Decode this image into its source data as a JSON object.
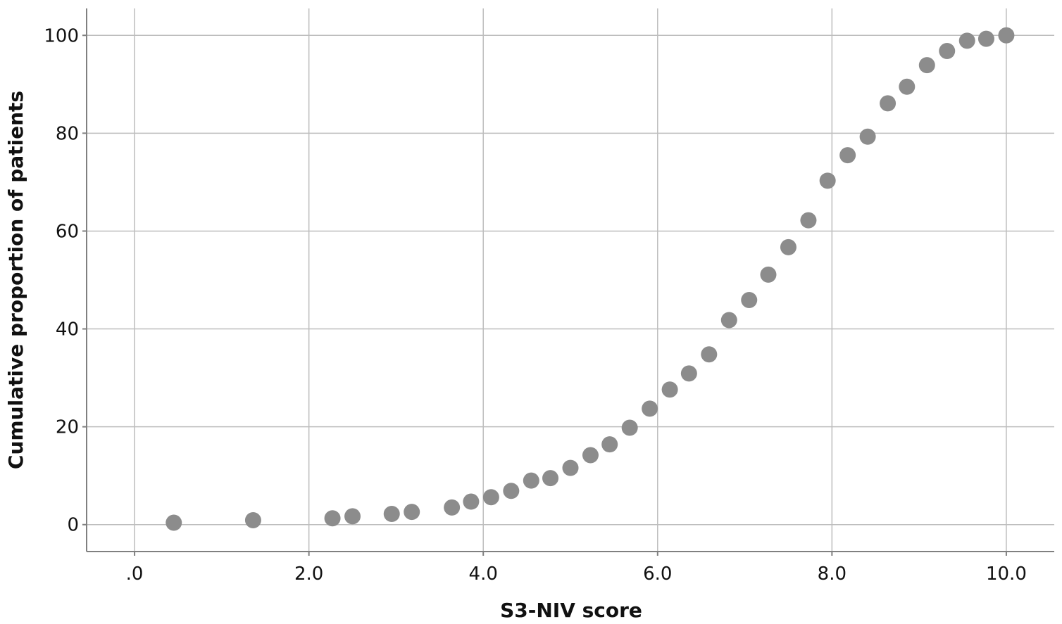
{
  "chart_data": {
    "type": "scatter",
    "xlabel": "S3-NIV score",
    "ylabel": "Cumulative proportion of patients",
    "xlim": [
      -0.55,
      10.55
    ],
    "ylim": [
      -5.5,
      105.5
    ],
    "x_ticks": [
      0,
      2,
      4,
      6,
      8,
      10
    ],
    "x_tick_labels": [
      ".0",
      "2.0",
      "4.0",
      "6.0",
      "8.0",
      "10.0"
    ],
    "y_ticks": [
      0,
      20,
      40,
      60,
      80,
      100
    ],
    "y_tick_labels": [
      "0",
      "20",
      "40",
      "60",
      "80",
      "100"
    ],
    "grid": true,
    "marker_color": "#8c8c8c",
    "grid_color": "#bdbdbd",
    "axis_color": "#808080",
    "points": [
      {
        "x": 0.45,
        "y": 0.4
      },
      {
        "x": 1.36,
        "y": 0.9
      },
      {
        "x": 2.27,
        "y": 1.3
      },
      {
        "x": 2.5,
        "y": 1.7
      },
      {
        "x": 2.95,
        "y": 2.2
      },
      {
        "x": 3.18,
        "y": 2.6
      },
      {
        "x": 3.64,
        "y": 3.5
      },
      {
        "x": 3.86,
        "y": 4.7
      },
      {
        "x": 4.09,
        "y": 5.6
      },
      {
        "x": 4.32,
        "y": 6.9
      },
      {
        "x": 4.55,
        "y": 9.0
      },
      {
        "x": 4.77,
        "y": 9.5
      },
      {
        "x": 5.0,
        "y": 11.6
      },
      {
        "x": 5.23,
        "y": 14.2
      },
      {
        "x": 5.45,
        "y": 16.4
      },
      {
        "x": 5.68,
        "y": 19.8
      },
      {
        "x": 5.91,
        "y": 23.7
      },
      {
        "x": 6.14,
        "y": 27.6
      },
      {
        "x": 6.36,
        "y": 30.9
      },
      {
        "x": 6.59,
        "y": 34.8
      },
      {
        "x": 6.82,
        "y": 41.8
      },
      {
        "x": 7.05,
        "y": 45.9
      },
      {
        "x": 7.27,
        "y": 51.1
      },
      {
        "x": 7.5,
        "y": 56.7
      },
      {
        "x": 7.73,
        "y": 62.2
      },
      {
        "x": 7.95,
        "y": 70.3
      },
      {
        "x": 8.18,
        "y": 75.5
      },
      {
        "x": 8.41,
        "y": 79.3
      },
      {
        "x": 8.64,
        "y": 86.1
      },
      {
        "x": 8.86,
        "y": 89.5
      },
      {
        "x": 9.09,
        "y": 93.9
      },
      {
        "x": 9.32,
        "y": 96.8
      },
      {
        "x": 9.55,
        "y": 98.9
      },
      {
        "x": 9.77,
        "y": 99.3
      },
      {
        "x": 10.0,
        "y": 100.0
      }
    ]
  }
}
